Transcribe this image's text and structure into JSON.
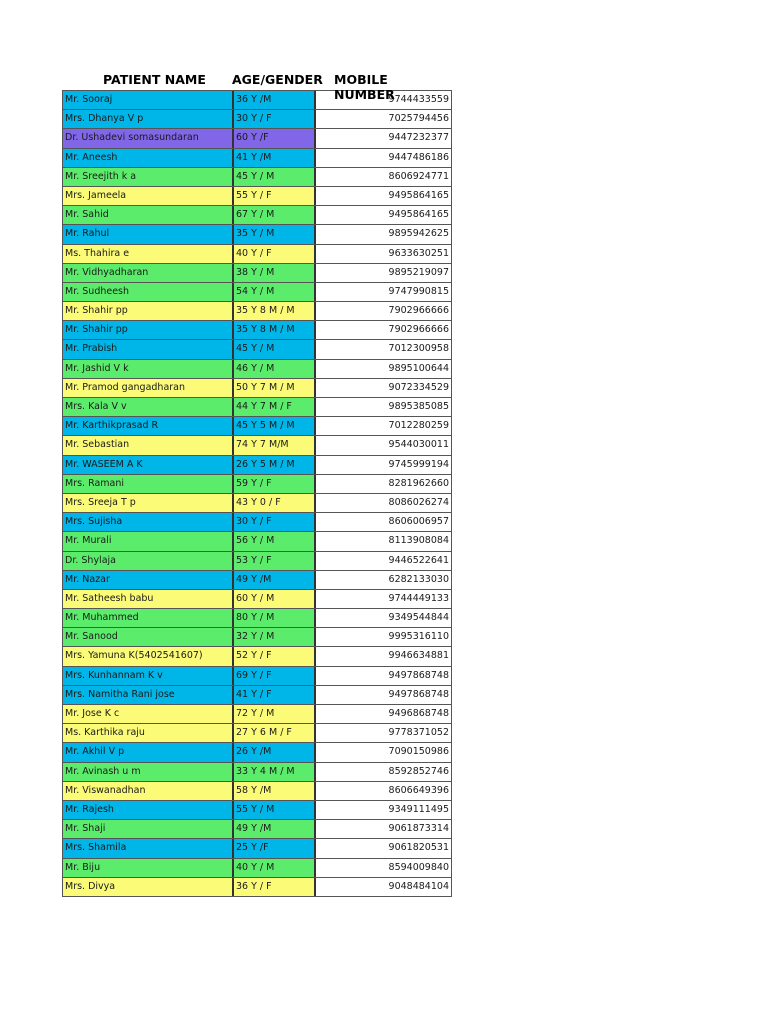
{
  "headers": {
    "name": "PATIENT NAME",
    "age": "AGE/GENDER",
    "mobile": "MOBILE NUMBER"
  },
  "colors": {
    "blue": "#00b5e8",
    "green": "#5cec6c",
    "yellow": "#fbfb78",
    "purple": "#8166e8"
  },
  "rows": [
    {
      "name": "Mr. Sooraj",
      "age": "36 Y /M",
      "mobile": "9744433559",
      "color": "blue"
    },
    {
      "name": "Mrs. Dhanya V p",
      "age": "30 Y / F",
      "mobile": "7025794456",
      "color": "blue"
    },
    {
      "name": "Dr. Ushadevi somasundaran",
      "age": "60 Y /F",
      "mobile": "9447232377",
      "color": "purple"
    },
    {
      "name": "Mr. Aneesh",
      "age": "41 Y /M",
      "mobile": "9447486186",
      "color": "blue"
    },
    {
      "name": "Mr. Sreejith k a",
      "age": "45 Y / M",
      "mobile": "8606924771",
      "color": "green"
    },
    {
      "name": "Mrs. Jameela",
      "age": "55 Y / F",
      "mobile": "9495864165",
      "color": "yellow"
    },
    {
      "name": "Mr. Sahid",
      "age": "67 Y / M",
      "mobile": "9495864165",
      "color": "green"
    },
    {
      "name": "Mr. Rahul",
      "age": "35 Y / M",
      "mobile": "9895942625",
      "color": "blue"
    },
    {
      "name": "Ms. Thahira e",
      "age": "40 Y / F",
      "mobile": "9633630251",
      "color": "yellow"
    },
    {
      "name": "Mr. Vidhyadharan",
      "age": "38 Y / M",
      "mobile": "9895219097",
      "color": "green"
    },
    {
      "name": "Mr. Sudheesh",
      "age": "54 Y / M",
      "mobile": "9747990815",
      "color": "green"
    },
    {
      "name": "Mr. Shahir pp",
      "age": "35 Y 8 M / M",
      "mobile": "7902966666",
      "color": "yellow"
    },
    {
      "name": "Mr. Shahir pp",
      "age": "35 Y 8 M / M",
      "mobile": "7902966666",
      "color": "blue"
    },
    {
      "name": "Mr. Prabish",
      "age": "45 Y / M",
      "mobile": "7012300958",
      "color": "blue"
    },
    {
      "name": "Mr. Jashid V k",
      "age": "46 Y / M",
      "mobile": "9895100644",
      "color": "green"
    },
    {
      "name": "Mr. Pramod gangadharan",
      "age": "50 Y 7 M / M",
      "mobile": "9072334529",
      "color": "yellow"
    },
    {
      "name": "Mrs. Kala V v",
      "age": "44 Y 7 M / F",
      "mobile": "9895385085",
      "color": "green"
    },
    {
      "name": "Mr. Karthikprasad R",
      "age": "45 Y 5 M / M",
      "mobile": "7012280259",
      "color": "blue"
    },
    {
      "name": "Mr. Sebastian",
      "age": "74 Y 7 M/M",
      "mobile": "9544030011",
      "color": "yellow"
    },
    {
      "name": "Mr. WASEEM A K",
      "age": "26 Y 5 M / M",
      "mobile": "9745999194",
      "color": "blue"
    },
    {
      "name": "Mrs. Ramani",
      "age": "59 Y / F",
      "mobile": "8281962660",
      "color": "green"
    },
    {
      "name": "Mrs. Sreeja T p",
      "age": "43 Y 0 / F",
      "mobile": "8086026274",
      "color": "yellow"
    },
    {
      "name": "Mrs. Sujisha",
      "age": "30 Y / F",
      "mobile": "8606006957",
      "color": "blue"
    },
    {
      "name": "Mr. Murali",
      "age": "56 Y / M",
      "mobile": "8113908084",
      "color": "green"
    },
    {
      "name": "Dr. Shylaja",
      "age": "53 Y / F",
      "mobile": "9446522641",
      "color": "green"
    },
    {
      "name": "Mr. Nazar",
      "age": "49 Y /M",
      "mobile": "6282133030",
      "color": "blue"
    },
    {
      "name": "Mr. Satheesh babu",
      "age": "60 Y / M",
      "mobile": "9744449133",
      "color": "yellow"
    },
    {
      "name": "Mr. Muhammed",
      "age": "80 Y / M",
      "mobile": "9349544844",
      "color": "green"
    },
    {
      "name": "Mr. Sanood",
      "age": "32 Y / M",
      "mobile": "9995316110",
      "color": "green"
    },
    {
      "name": "Mrs. Yamuna K(5402541607)",
      "age": "52 Y / F",
      "mobile": "9946634881",
      "color": "yellow"
    },
    {
      "name": "Mrs. Kunhannam K v",
      "age": "69 Y / F",
      "mobile": "9497868748",
      "color": "blue"
    },
    {
      "name": "Mrs. Namitha Rani jose",
      "age": "41 Y / F",
      "mobile": "9497868748",
      "color": "blue"
    },
    {
      "name": "Mr. Jose K c",
      "age": "72 Y / M",
      "mobile": "9496868748",
      "color": "yellow"
    },
    {
      "name": "Ms. Karthika raju",
      "age": "27 Y 6 M / F",
      "mobile": "9778371052",
      "color": "yellow"
    },
    {
      "name": "Mr. Akhil V p",
      "age": "26 Y /M",
      "mobile": "7090150986",
      "color": "blue"
    },
    {
      "name": "Mr. Avinash u m",
      "age": "33 Y 4 M / M",
      "mobile": "8592852746",
      "color": "green"
    },
    {
      "name": "Mr. Viswanadhan",
      "age": "58 Y /M",
      "mobile": "8606649396",
      "color": "yellow"
    },
    {
      "name": "Mr. Rajesh",
      "age": "55 Y / M",
      "mobile": "9349111495",
      "color": "blue"
    },
    {
      "name": "Mr. Shaji",
      "age": "49 Y /M",
      "mobile": "9061873314",
      "color": "green"
    },
    {
      "name": "Mrs. Shamila",
      "age": "25 Y /F",
      "mobile": "9061820531",
      "color": "blue"
    },
    {
      "name": "Mr. Biju",
      "age": "40 Y / M",
      "mobile": "8594009840",
      "color": "green"
    },
    {
      "name": "Mrs. Divya",
      "age": "36 Y / F",
      "mobile": "9048484104",
      "color": "yellow"
    }
  ]
}
